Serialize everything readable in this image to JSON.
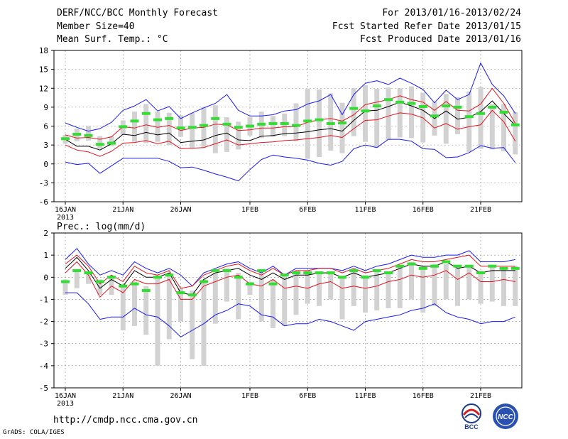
{
  "header": {
    "left": [
      "DERF/NCC/BCC Monthly Forecast",
      "Member Size=40",
      "Mean Surf. Temp.: °C"
    ],
    "right": [
      "For 2013/01/16-2013/02/24",
      "Fcst Started Refer Date 2013/01/15",
      "Fcst Produced Date 2013/01/16"
    ]
  },
  "footer": {
    "url": "http://cmdp.ncc.cma.gov.cn",
    "credit": "GrADS: COLA/IGES",
    "logo_left": "BCC",
    "logo_right": "NCC"
  },
  "colors": {
    "ensemble_mean": "#000000",
    "spread_band": "#e0141e",
    "min_max": "#1a1aee",
    "observed": "#33dd33",
    "member_range": "#d2d2d2",
    "grid": "#888888"
  },
  "chart_data": [
    {
      "type": "line",
      "title": "Mean Surf. Temp.: °C",
      "ylim": [
        -6,
        18
      ],
      "yticks": [
        -6,
        -3,
        0,
        3,
        6,
        9,
        12,
        15,
        18
      ],
      "x_tick_labels": [
        {
          "day": 1,
          "label": "16JAN",
          "sub": "2013"
        },
        {
          "day": 6,
          "label": "21JAN"
        },
        {
          "day": 11,
          "label": "26JAN"
        },
        {
          "day": 17,
          "label": "1FEB"
        },
        {
          "day": 22,
          "label": "6FEB"
        },
        {
          "day": 27,
          "label": "11FEB"
        },
        {
          "day": 32,
          "label": "16FEB"
        },
        {
          "day": 37,
          "label": "21FEB"
        }
      ],
      "days": [
        1,
        2,
        3,
        4,
        5,
        6,
        7,
        8,
        9,
        10,
        11,
        12,
        13,
        14,
        15,
        16,
        17,
        18,
        19,
        20,
        21,
        22,
        23,
        24,
        25,
        26,
        27,
        28,
        29,
        30,
        31,
        32,
        33,
        34,
        35,
        36,
        37,
        38,
        39,
        40
      ],
      "series": [
        {
          "name": "max",
          "values": [
            6.5,
            5.8,
            5.2,
            5.6,
            6.6,
            8.5,
            9.2,
            10.2,
            8.4,
            9.1,
            7.2,
            8.1,
            8.9,
            9.6,
            11.0,
            8.5,
            7.6,
            7.6,
            7.8,
            8.4,
            8.6,
            9.5,
            10.0,
            11.0,
            7.8,
            11.0,
            12.8,
            13.2,
            12.6,
            13.6,
            12.8,
            11.8,
            9.7,
            11.7,
            10.2,
            11.0,
            16.0,
            12.6,
            10.8,
            8.0
          ]
        },
        {
          "name": "upper",
          "values": [
            4.6,
            4.1,
            4.2,
            3.9,
            4.3,
            5.9,
            5.7,
            6.2,
            5.8,
            6.1,
            5.3,
            5.7,
            5.8,
            6.3,
            6.2,
            5.3,
            5.4,
            5.7,
            5.7,
            5.9,
            5.9,
            6.6,
            7.0,
            7.2,
            6.8,
            7.8,
            9.4,
            9.8,
            10.2,
            10.8,
            10.2,
            9.8,
            8.5,
            9.9,
            8.5,
            8.4,
            9.5,
            12.0,
            9.6,
            6.4
          ]
        },
        {
          "name": "mean",
          "values": [
            3.9,
            2.8,
            2.8,
            2.2,
            3.2,
            4.7,
            4.5,
            5.0,
            4.6,
            4.9,
            3.4,
            3.6,
            3.8,
            4.5,
            4.9,
            3.8,
            3.7,
            4.4,
            4.5,
            4.8,
            4.9,
            5.1,
            5.4,
            5.6,
            5.2,
            6.9,
            8.4,
            8.5,
            9.1,
            9.8,
            9.2,
            8.5,
            7.2,
            8.4,
            7.1,
            7.4,
            8.3,
            10.0,
            8.0,
            6.1
          ]
        },
        {
          "name": "lower",
          "values": [
            3.0,
            2.2,
            1.9,
            1.2,
            2.0,
            3.3,
            3.4,
            3.7,
            3.2,
            3.6,
            2.4,
            2.5,
            2.6,
            3.2,
            3.8,
            3.0,
            3.2,
            3.4,
            3.5,
            3.7,
            3.8,
            4.0,
            4.2,
            4.5,
            4.2,
            5.6,
            6.9,
            7.0,
            7.6,
            8.1,
            7.9,
            7.3,
            5.7,
            6.4,
            5.5,
            5.9,
            6.2,
            8.5,
            6.7,
            3.6
          ]
        },
        {
          "name": "min",
          "values": [
            0.3,
            -0.1,
            0.1,
            -1.5,
            -0.3,
            0.9,
            0.9,
            0.9,
            0.9,
            0.4,
            -0.6,
            -0.5,
            -1.0,
            -1.6,
            -2.1,
            -2.7,
            -0.9,
            0.7,
            1.4,
            1.1,
            0.9,
            0.6,
            0.1,
            -0.2,
            0.4,
            2.4,
            3.0,
            2.6,
            3.9,
            3.9,
            3.6,
            2.4,
            2.3,
            1.0,
            1.1,
            1.8,
            2.9,
            2.5,
            2.6,
            0.2
          ]
        },
        {
          "name": "observed",
          "values": [
            4.0,
            4.7,
            4.5,
            3.1,
            3.3,
            5.9,
            6.8,
            8.0,
            7.0,
            7.2,
            5.7,
            5.8,
            6.1,
            7.2,
            6.3,
            5.8,
            6.0,
            6.3,
            6.4,
            6.4,
            6.1,
            6.8,
            7.0,
            6.4,
            6.5,
            8.8,
            8.4,
            9.2,
            10.2,
            9.8,
            9.6,
            9.1,
            7.6,
            9.2,
            9.0,
            7.5,
            8.0,
            9.0,
            8.2,
            6.2
          ]
        },
        {
          "name": "range_low",
          "values": [
            3.2,
            3.6,
            3.7,
            2.4,
            2.8,
            4.6,
            3.5,
            3.3,
            3.5,
            3.0,
            4.3,
            2.5,
            2.5,
            1.7,
            1.9,
            2.3,
            4.5,
            4.1,
            4.3,
            4.4,
            3.6,
            0.8,
            1.1,
            2.1,
            1.7,
            4.4,
            3.5,
            2.6,
            3.8,
            4.2,
            4.1,
            3.4,
            4.5,
            3.2,
            4.7,
            1.9,
            2.4,
            2.3,
            2.0,
            1.5
          ]
        },
        {
          "name": "range_high",
          "values": [
            4.6,
            5.6,
            6.0,
            4.4,
            4.4,
            6.9,
            8.3,
            9.5,
            8.3,
            8.1,
            7.7,
            8.1,
            9.0,
            9.3,
            7.4,
            6.7,
            7.4,
            8.3,
            7.6,
            8.0,
            9.6,
            11.9,
            11.8,
            11.2,
            9.7,
            12.0,
            12.5,
            11.9,
            12.1,
            12.0,
            12.3,
            11.3,
            9.8,
            11.1,
            10.6,
            11.5,
            12.2,
            9.5,
            9.5,
            8.2
          ]
        }
      ]
    },
    {
      "type": "line",
      "title": "Prec.: log(mm/d)",
      "ylim": [
        -5,
        2
      ],
      "yticks": [
        -5,
        -4,
        -3,
        -2,
        -1,
        0,
        1,
        2
      ],
      "x_tick_labels": [
        {
          "day": 1,
          "label": "16JAN",
          "sub": "2013"
        },
        {
          "day": 6,
          "label": "21JAN"
        },
        {
          "day": 11,
          "label": "26JAN"
        },
        {
          "day": 17,
          "label": "1FEB"
        },
        {
          "day": 22,
          "label": "6FEB"
        },
        {
          "day": 27,
          "label": "11FEB"
        },
        {
          "day": 32,
          "label": "16FEB"
        },
        {
          "day": 37,
          "label": "21FEB"
        }
      ],
      "days": [
        1,
        2,
        3,
        4,
        5,
        6,
        7,
        8,
        9,
        10,
        11,
        12,
        13,
        14,
        15,
        16,
        17,
        18,
        19,
        20,
        21,
        22,
        23,
        24,
        25,
        26,
        27,
        28,
        29,
        30,
        31,
        32,
        33,
        34,
        35,
        36,
        37,
        38,
        39,
        40
      ],
      "series": [
        {
          "name": "max",
          "values": [
            0.8,
            1.3,
            0.6,
            0.1,
            0.3,
            0.1,
            0.7,
            0.4,
            0.2,
            0.4,
            0.1,
            -0.4,
            0.2,
            0.4,
            0.6,
            0.7,
            0.4,
            0.2,
            0.5,
            0.1,
            0.4,
            0.4,
            0.4,
            0.4,
            0.3,
            0.5,
            0.3,
            0.5,
            0.6,
            0.8,
            1.0,
            0.9,
            0.9,
            1.0,
            1.0,
            1.2,
            0.7,
            0.7,
            0.7,
            0.8
          ]
        },
        {
          "name": "upper",
          "values": [
            0.6,
            1.0,
            0.5,
            -0.3,
            0.1,
            -0.2,
            0.5,
            0.2,
            0.1,
            0.3,
            -0.5,
            -0.4,
            0.1,
            0.3,
            0.5,
            0.6,
            0.3,
            0.1,
            0.4,
            0.1,
            0.3,
            0.3,
            0.4,
            0.4,
            0.2,
            0.4,
            0.2,
            0.3,
            0.4,
            0.6,
            0.8,
            0.7,
            0.7,
            0.8,
            0.9,
            1.0,
            0.5,
            0.5,
            0.5,
            0.5
          ]
        },
        {
          "name": "mean",
          "values": [
            0.4,
            0.9,
            0.3,
            -0.5,
            -0.1,
            -0.4,
            0.3,
            0.0,
            0.0,
            0.2,
            -0.7,
            -0.8,
            -0.1,
            0.2,
            0.3,
            0.4,
            0.1,
            -0.1,
            0.2,
            -0.1,
            0.1,
            0.1,
            0.2,
            0.2,
            0.0,
            0.2,
            0.0,
            0.1,
            0.2,
            0.4,
            0.6,
            0.5,
            0.5,
            0.7,
            0.4,
            0.5,
            0.2,
            0.3,
            0.3,
            0.3
          ]
        },
        {
          "name": "lower",
          "values": [
            0.2,
            0.7,
            0.1,
            -0.9,
            -0.4,
            -0.7,
            -0.1,
            -0.3,
            -0.3,
            -0.1,
            -1.0,
            -1.0,
            -0.4,
            -0.2,
            0.0,
            0.1,
            -0.3,
            -0.4,
            -0.1,
            -0.5,
            -0.4,
            -0.5,
            -0.3,
            -0.2,
            -0.5,
            -0.4,
            -0.5,
            -0.4,
            -0.2,
            -0.1,
            0.1,
            0.0,
            0.1,
            0.3,
            -0.1,
            0.2,
            -0.2,
            -0.2,
            -0.1,
            -0.2
          ]
        },
        {
          "name": "min",
          "values": [
            -0.7,
            -0.7,
            -1.2,
            -1.9,
            -1.8,
            -1.8,
            -1.4,
            -1.7,
            -1.8,
            -2.2,
            -2.7,
            -2.4,
            -2.1,
            -1.7,
            -1.5,
            -1.2,
            -1.3,
            -1.7,
            -1.8,
            -2.2,
            -2.1,
            -2.1,
            -1.9,
            -2.0,
            -2.2,
            -2.4,
            -2.0,
            -1.9,
            -1.8,
            -1.7,
            -1.5,
            -1.4,
            -1.2,
            -1.6,
            -1.8,
            -1.9,
            -2.1,
            -2.0,
            -2.0,
            -1.8
          ]
        },
        {
          "name": "observed",
          "values": [
            -0.2,
            0.3,
            0.2,
            -0.2,
            0.0,
            -0.4,
            -0.3,
            -0.6,
            0.0,
            0.1,
            -0.7,
            -0.8,
            -0.2,
            0.3,
            0.3,
            0.0,
            -0.3,
            0.3,
            -0.3,
            0.1,
            0.2,
            0.2,
            0.2,
            0.2,
            0.0,
            0.3,
            0.0,
            0.3,
            0.2,
            0.5,
            0.6,
            0.4,
            0.5,
            0.7,
            0.5,
            0.5,
            0.2,
            0.5,
            0.4,
            0.4
          ]
        },
        {
          "name": "range_low",
          "values": [
            -0.8,
            -0.5,
            -0.3,
            -0.8,
            -0.8,
            -2.4,
            -2.2,
            -2.6,
            -4.0,
            -2.8,
            -2.0,
            -3.7,
            -4.0,
            -2.1,
            -1.1,
            -1.9,
            -0.8,
            -2.0,
            -2.3,
            -2.2,
            -1.7,
            -1.2,
            -1.3,
            -1.0,
            -1.9,
            -1.3,
            -1.6,
            -1.5,
            -1.4,
            -1.4,
            -1.0,
            -1.6,
            -1.3,
            -1.0,
            -1.3,
            -1.0,
            -1.2,
            -1.1,
            -1.3,
            -1.3
          ]
        },
        {
          "name": "range_high",
          "values": [
            -0.1,
            0.3,
            0.2,
            -0.1,
            0.0,
            -0.3,
            -0.2,
            -0.4,
            0.1,
            0.1,
            -0.5,
            -0.6,
            -0.1,
            0.2,
            0.4,
            0.2,
            -0.2,
            0.2,
            -0.1,
            0.1,
            0.2,
            0.3,
            0.2,
            0.2,
            0.0,
            0.3,
            0.1,
            0.3,
            0.2,
            0.5,
            0.7,
            0.5,
            0.6,
            0.6,
            0.4,
            0.5,
            0.3,
            0.5,
            0.4,
            0.5
          ]
        }
      ]
    }
  ]
}
